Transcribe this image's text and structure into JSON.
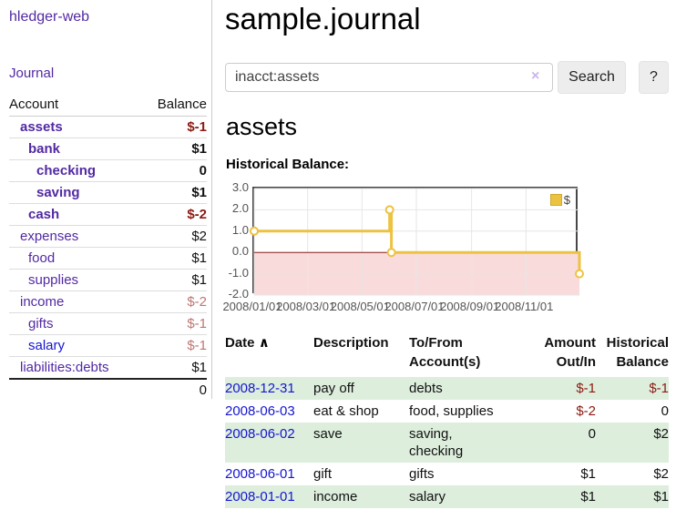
{
  "app": {
    "brand": "hledger-web"
  },
  "sidebar": {
    "journal_link": "Journal",
    "accounts": {
      "headers": {
        "account": "Account",
        "balance": "Balance"
      },
      "rows": [
        {
          "name": "assets",
          "balance": "$-1"
        },
        {
          "name": "bank",
          "balance": "$1"
        },
        {
          "name": "checking",
          "balance": "0"
        },
        {
          "name": "saving",
          "balance": "$1"
        },
        {
          "name": "cash",
          "balance": "$-2"
        },
        {
          "name": "expenses",
          "balance": "$2"
        },
        {
          "name": "food",
          "balance": "$1"
        },
        {
          "name": "supplies",
          "balance": "$1"
        },
        {
          "name": "income",
          "balance": "$-2"
        },
        {
          "name": "gifts",
          "balance": "$-1"
        },
        {
          "name": "salary",
          "balance": "$-1"
        },
        {
          "name": "liabilities:debts",
          "balance": "$1"
        }
      ],
      "total": "0"
    }
  },
  "main": {
    "title": "sample.journal",
    "search": {
      "value": "inacct:assets",
      "clear_icon": "×",
      "search_label": "Search",
      "help_label": "?"
    },
    "account_heading": "assets",
    "chart_heading": "Historical Balance:",
    "transactions": {
      "headers": {
        "date": "Date",
        "sort_caret": "∧",
        "description": "Description",
        "accounts": "To/From Account(s)",
        "amount": "Amount Out/In",
        "balance": "Historical Balance"
      },
      "rows": [
        {
          "date": "2008-12-31",
          "description": "pay off",
          "accounts": "debts",
          "amount": "$-1",
          "balance": "$-1"
        },
        {
          "date": "2008-06-03",
          "description": "eat & shop",
          "accounts": "food, supplies",
          "amount": "$-2",
          "balance": "0"
        },
        {
          "date": "2008-06-02",
          "description": "save",
          "accounts": "saving, checking",
          "amount": "0",
          "balance": "$2"
        },
        {
          "date": "2008-06-01",
          "description": "gift",
          "accounts": "gifts",
          "amount": "$1",
          "balance": "$2"
        },
        {
          "date": "2008-01-01",
          "description": "income",
          "accounts": "salary",
          "amount": "$1",
          "balance": "$1"
        }
      ]
    }
  },
  "chart_data": {
    "type": "line",
    "title": "Historical Balance:",
    "step": true,
    "series": [
      {
        "name": "$",
        "color": "#edc240",
        "points": [
          [
            "2008-01-01",
            1
          ],
          [
            "2008-06-01",
            2
          ],
          [
            "2008-06-03",
            0
          ],
          [
            "2008-12-31",
            -1
          ]
        ]
      }
    ],
    "x_range": [
      "2008-01-01",
      "2008-12-31"
    ],
    "x_tick_labels": [
      "2008/01/01",
      "2008/03/01",
      "2008/05/01",
      "2008/07/01",
      "2008/09/01",
      "2008/11/01"
    ],
    "y_ticks": [
      3.0,
      2.0,
      1.0,
      0.0,
      -1.0,
      -2.0
    ],
    "ylim": [
      -2,
      3
    ],
    "grid": true,
    "legend_position": "top-right",
    "marker": "open-circle",
    "negative_region_color": "#f9dbdb",
    "zero_line_color": "#8b1a1a",
    "grid_color": "#e6e6e6"
  },
  "colors": {
    "link_purple": "#5229a3",
    "link_blue": "#1515d2",
    "negative_strong": "#8c1a11",
    "negative_dim": "#bd7672",
    "row_stripe_green": "#ddeedd",
    "series_gold": "#edc240"
  }
}
